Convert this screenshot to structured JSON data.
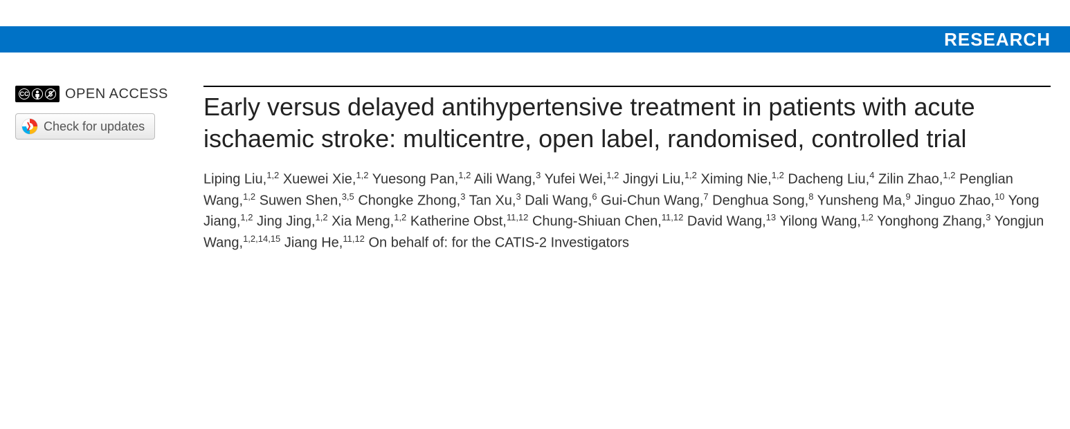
{
  "colors": {
    "header_bar_bg": "#0072c6",
    "header_text": "#ffffff",
    "body_bg": "#ffffff",
    "title_color": "#222222",
    "author_color": "#333333",
    "button_border": "#bbbbbb",
    "cc_badge_bg": "#000000"
  },
  "header": {
    "label": "RESEARCH"
  },
  "sidebar": {
    "open_access_label": "OPEN ACCESS",
    "cc_symbols": [
      "CC",
      "BY",
      "NC"
    ],
    "updates_button_label": "Check for updates"
  },
  "article": {
    "title": "Early versus delayed antihypertensive treatment in patients with acute ischaemic stroke: multicentre, open label, randomised, controlled trial",
    "authors": [
      {
        "name": "Liping Liu",
        "aff": "1,2"
      },
      {
        "name": "Xuewei Xie",
        "aff": "1,2"
      },
      {
        "name": "Yuesong Pan",
        "aff": "1,2"
      },
      {
        "name": "Aili Wang",
        "aff": "3"
      },
      {
        "name": "Yufei Wei",
        "aff": "1,2"
      },
      {
        "name": "Jingyi Liu",
        "aff": "1,2"
      },
      {
        "name": "Ximing Nie",
        "aff": "1,2"
      },
      {
        "name": "Dacheng Liu",
        "aff": "4"
      },
      {
        "name": "Zilin Zhao",
        "aff": "1,2"
      },
      {
        "name": "Penglian Wang",
        "aff": "1,2"
      },
      {
        "name": "Suwen Shen",
        "aff": "3,5"
      },
      {
        "name": "Chongke Zhong",
        "aff": "3"
      },
      {
        "name": "Tan Xu",
        "aff": "3"
      },
      {
        "name": "Dali Wang",
        "aff": "6"
      },
      {
        "name": "Gui-Chun Wang",
        "aff": "7"
      },
      {
        "name": "Denghua Song",
        "aff": "8"
      },
      {
        "name": "Yunsheng Ma",
        "aff": "9"
      },
      {
        "name": "Jinguo Zhao",
        "aff": "10"
      },
      {
        "name": "Yong Jiang",
        "aff": "1,2"
      },
      {
        "name": "Jing Jing",
        "aff": "1,2"
      },
      {
        "name": "Xia Meng",
        "aff": "1,2"
      },
      {
        "name": "Katherine Obst",
        "aff": "11,12"
      },
      {
        "name": "Chung-Shiuan Chen",
        "aff": "11,12"
      },
      {
        "name": "David Wang",
        "aff": "13"
      },
      {
        "name": "Yilong Wang",
        "aff": "1,2"
      },
      {
        "name": "Yonghong Zhang",
        "aff": "3"
      },
      {
        "name": "Yongjun Wang",
        "aff": "1,2,14,15"
      },
      {
        "name": "Jiang He",
        "aff": "11,12"
      }
    ],
    "on_behalf": "On behalf of: for the CATIS-2 Investigators"
  },
  "typography": {
    "header_fontsize": 26,
    "title_fontsize": 36,
    "author_fontsize": 20,
    "open_access_fontsize": 20,
    "button_fontsize": 18
  }
}
